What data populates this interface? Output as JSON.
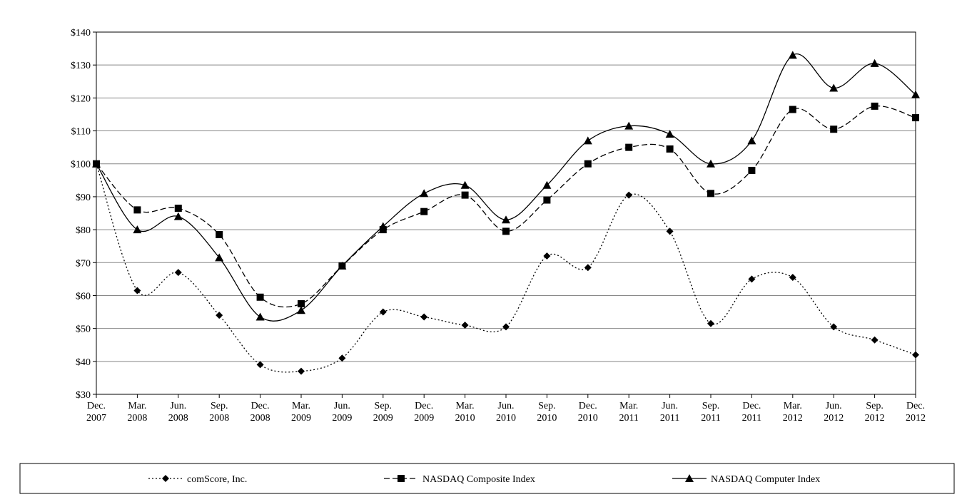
{
  "chart_data": {
    "type": "line",
    "categories": [
      "Dec. 2007",
      "Mar. 2008",
      "Jun. 2008",
      "Sep. 2008",
      "Dec. 2008",
      "Mar. 2009",
      "Jun. 2009",
      "Sep. 2009",
      "Dec. 2009",
      "Mar. 2010",
      "Jun. 2010",
      "Sep. 2010",
      "Dec. 2010",
      "Mar. 2011",
      "Jun. 2011",
      "Sep. 2011",
      "Dec. 2011",
      "Mar. 2012",
      "Jun. 2012",
      "Sep. 2012",
      "Dec. 2012"
    ],
    "series": [
      {
        "name": "comScore, Inc.",
        "color": "#000000",
        "marker": "diamond",
        "line_style": "dotted",
        "values": [
          100,
          61.5,
          67,
          54,
          39,
          37,
          41,
          55,
          53.5,
          51,
          50.5,
          72,
          68.5,
          90.5,
          79.5,
          51.5,
          65,
          65.5,
          50.5,
          46.5,
          42
        ]
      },
      {
        "name": "NASDAQ Composite Index",
        "color": "#000000",
        "marker": "square",
        "line_style": "dashed",
        "values": [
          100,
          86,
          86.5,
          78.5,
          59.5,
          57.5,
          69,
          80,
          85.5,
          90.5,
          79.5,
          89,
          100,
          105,
          104.5,
          91,
          98,
          116.5,
          110.5,
          117.5,
          114
        ]
      },
      {
        "name": "NASDAQ Computer Index",
        "color": "#000000",
        "marker": "triangle",
        "line_style": "solid",
        "values": [
          100,
          80,
          84,
          71.5,
          53.5,
          55.5,
          69,
          81,
          91,
          93.5,
          83,
          93.5,
          107,
          111.5,
          109,
          100,
          107,
          133,
          123,
          130.5,
          121
        ]
      }
    ],
    "ylim": [
      30,
      140
    ],
    "yticks": [
      {
        "value": 30,
        "label": "$30"
      },
      {
        "value": 40,
        "label": "$40"
      },
      {
        "value": 50,
        "label": "$50"
      },
      {
        "value": 60,
        "label": "$60"
      },
      {
        "value": 70,
        "label": "$70"
      },
      {
        "value": 80,
        "label": "$80"
      },
      {
        "value": 90,
        "label": "$90"
      },
      {
        "value": 100,
        "label": "$100"
      },
      {
        "value": 110,
        "label": "$110"
      },
      {
        "value": 120,
        "label": "$120"
      },
      {
        "value": 130,
        "label": "$130"
      },
      {
        "value": 140,
        "label": "$140"
      }
    ],
    "grid": true,
    "smooth": true,
    "legend": "bottom"
  }
}
